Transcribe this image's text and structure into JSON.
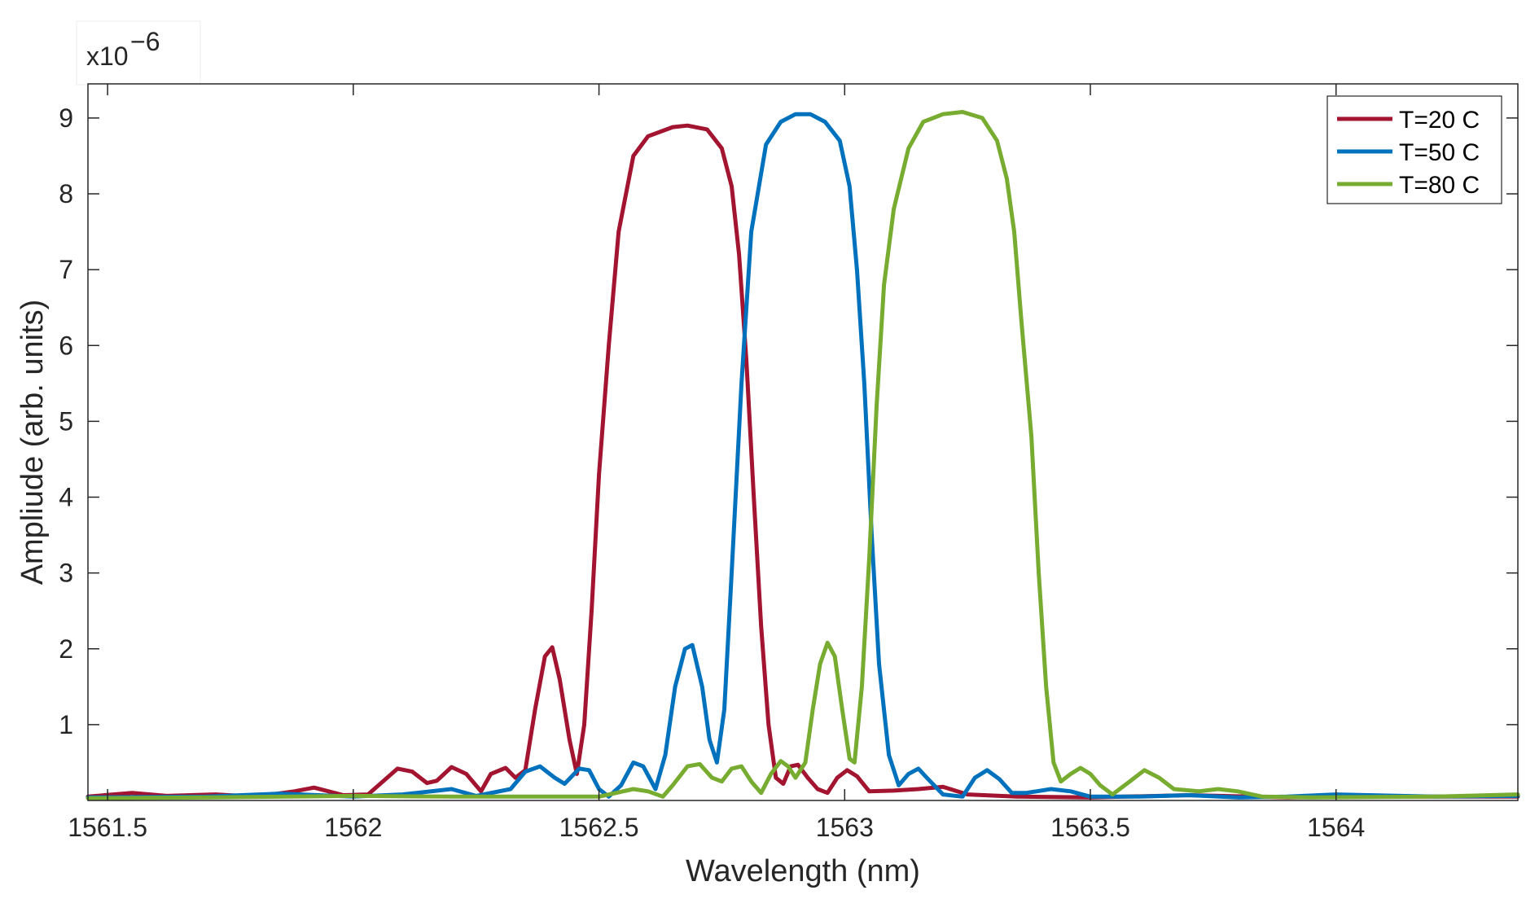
{
  "chart_data": {
    "type": "line",
    "title": "",
    "xlabel": "Wavelength (nm)",
    "ylabel": "Ampliude (arb. units)",
    "y_exponent": "x10",
    "y_exponent_power": "−6",
    "xlim": [
      1561.46,
      1564.37
    ],
    "ylim": [
      0,
      9.45
    ],
    "xticks": [
      1561.5,
      1562,
      1562.5,
      1563,
      1563.5,
      1564
    ],
    "xtick_labels": [
      "1561.5",
      "1562",
      "1562.5",
      "1563",
      "1563.5",
      "1564"
    ],
    "yticks": [
      1,
      2,
      3,
      4,
      5,
      6,
      7,
      8,
      9
    ],
    "ytick_labels": [
      "1",
      "2",
      "3",
      "4",
      "5",
      "6",
      "7",
      "8",
      "9"
    ],
    "grid": false,
    "legend_position": "top-right",
    "series": [
      {
        "name": "T=20 C",
        "color": "#a2142f",
        "points": [
          [
            1561.46,
            0.05
          ],
          [
            1561.55,
            0.1
          ],
          [
            1561.62,
            0.06
          ],
          [
            1561.72,
            0.08
          ],
          [
            1561.8,
            0.05
          ],
          [
            1561.88,
            0.12
          ],
          [
            1561.92,
            0.17
          ],
          [
            1561.98,
            0.07
          ],
          [
            1562.03,
            0.08
          ],
          [
            1562.06,
            0.25
          ],
          [
            1562.09,
            0.42
          ],
          [
            1562.12,
            0.38
          ],
          [
            1562.15,
            0.23
          ],
          [
            1562.17,
            0.26
          ],
          [
            1562.2,
            0.44
          ],
          [
            1562.23,
            0.35
          ],
          [
            1562.26,
            0.12
          ],
          [
            1562.28,
            0.35
          ],
          [
            1562.31,
            0.43
          ],
          [
            1562.33,
            0.3
          ],
          [
            1562.35,
            0.4
          ],
          [
            1562.37,
            1.2
          ],
          [
            1562.39,
            1.9
          ],
          [
            1562.405,
            2.02
          ],
          [
            1562.42,
            1.6
          ],
          [
            1562.44,
            0.8
          ],
          [
            1562.455,
            0.35
          ],
          [
            1562.47,
            1.0
          ],
          [
            1562.485,
            2.5
          ],
          [
            1562.5,
            4.3
          ],
          [
            1562.52,
            6.0
          ],
          [
            1562.54,
            7.5
          ],
          [
            1562.57,
            8.5
          ],
          [
            1562.6,
            8.76
          ],
          [
            1562.65,
            8.88
          ],
          [
            1562.68,
            8.9
          ],
          [
            1562.72,
            8.85
          ],
          [
            1562.75,
            8.6
          ],
          [
            1562.77,
            8.1
          ],
          [
            1562.785,
            7.2
          ],
          [
            1562.8,
            5.8
          ],
          [
            1562.815,
            4.0
          ],
          [
            1562.83,
            2.3
          ],
          [
            1562.845,
            1.0
          ],
          [
            1562.86,
            0.3
          ],
          [
            1562.875,
            0.22
          ],
          [
            1562.89,
            0.45
          ],
          [
            1562.905,
            0.47
          ],
          [
            1562.925,
            0.3
          ],
          [
            1562.945,
            0.15
          ],
          [
            1562.965,
            0.1
          ],
          [
            1562.985,
            0.3
          ],
          [
            1563.005,
            0.4
          ],
          [
            1563.025,
            0.32
          ],
          [
            1563.05,
            0.12
          ],
          [
            1563.1,
            0.13
          ],
          [
            1563.15,
            0.15
          ],
          [
            1563.2,
            0.18
          ],
          [
            1563.25,
            0.08
          ],
          [
            1563.35,
            0.05
          ],
          [
            1563.5,
            0.04
          ],
          [
            1563.7,
            0.07
          ],
          [
            1563.9,
            0.04
          ],
          [
            1564.1,
            0.05
          ],
          [
            1564.37,
            0.05
          ]
        ]
      },
      {
        "name": "T=50 C",
        "color": "#0072bd",
        "points": [
          [
            1561.46,
            0.04
          ],
          [
            1561.7,
            0.05
          ],
          [
            1561.85,
            0.09
          ],
          [
            1562.0,
            0.05
          ],
          [
            1562.1,
            0.08
          ],
          [
            1562.2,
            0.15
          ],
          [
            1562.25,
            0.06
          ],
          [
            1562.32,
            0.15
          ],
          [
            1562.35,
            0.38
          ],
          [
            1562.38,
            0.45
          ],
          [
            1562.41,
            0.3
          ],
          [
            1562.43,
            0.22
          ],
          [
            1562.46,
            0.42
          ],
          [
            1562.48,
            0.4
          ],
          [
            1562.5,
            0.15
          ],
          [
            1562.52,
            0.05
          ],
          [
            1562.545,
            0.2
          ],
          [
            1562.57,
            0.5
          ],
          [
            1562.59,
            0.45
          ],
          [
            1562.615,
            0.15
          ],
          [
            1562.635,
            0.6
          ],
          [
            1562.655,
            1.5
          ],
          [
            1562.675,
            2.0
          ],
          [
            1562.69,
            2.05
          ],
          [
            1562.71,
            1.5
          ],
          [
            1562.725,
            0.8
          ],
          [
            1562.74,
            0.5
          ],
          [
            1562.755,
            1.2
          ],
          [
            1562.77,
            3.0
          ],
          [
            1562.79,
            5.5
          ],
          [
            1562.81,
            7.5
          ],
          [
            1562.84,
            8.65
          ],
          [
            1562.87,
            8.95
          ],
          [
            1562.9,
            9.05
          ],
          [
            1562.93,
            9.05
          ],
          [
            1562.96,
            8.95
          ],
          [
            1562.99,
            8.7
          ],
          [
            1563.01,
            8.1
          ],
          [
            1563.025,
            7.0
          ],
          [
            1563.04,
            5.5
          ],
          [
            1563.055,
            3.5
          ],
          [
            1563.07,
            1.8
          ],
          [
            1563.09,
            0.6
          ],
          [
            1563.11,
            0.2
          ],
          [
            1563.13,
            0.35
          ],
          [
            1563.15,
            0.42
          ],
          [
            1563.17,
            0.28
          ],
          [
            1563.2,
            0.08
          ],
          [
            1563.24,
            0.05
          ],
          [
            1563.265,
            0.3
          ],
          [
            1563.29,
            0.4
          ],
          [
            1563.315,
            0.28
          ],
          [
            1563.34,
            0.1
          ],
          [
            1563.37,
            0.1
          ],
          [
            1563.42,
            0.15
          ],
          [
            1563.46,
            0.12
          ],
          [
            1563.5,
            0.05
          ],
          [
            1563.6,
            0.05
          ],
          [
            1563.7,
            0.07
          ],
          [
            1563.8,
            0.04
          ],
          [
            1563.9,
            0.05
          ],
          [
            1564.0,
            0.08
          ],
          [
            1564.2,
            0.05
          ],
          [
            1564.37,
            0.06
          ]
        ]
      },
      {
        "name": "T=80 C",
        "color": "#77ac30",
        "points": [
          [
            1561.46,
            0.03
          ],
          [
            1561.7,
            0.04
          ],
          [
            1562.0,
            0.06
          ],
          [
            1562.2,
            0.05
          ],
          [
            1562.4,
            0.05
          ],
          [
            1562.5,
            0.05
          ],
          [
            1562.57,
            0.15
          ],
          [
            1562.6,
            0.12
          ],
          [
            1562.63,
            0.05
          ],
          [
            1562.65,
            0.2
          ],
          [
            1562.68,
            0.45
          ],
          [
            1562.705,
            0.48
          ],
          [
            1562.73,
            0.3
          ],
          [
            1562.75,
            0.25
          ],
          [
            1562.77,
            0.42
          ],
          [
            1562.79,
            0.45
          ],
          [
            1562.81,
            0.25
          ],
          [
            1562.83,
            0.1
          ],
          [
            1562.85,
            0.35
          ],
          [
            1562.87,
            0.52
          ],
          [
            1562.885,
            0.45
          ],
          [
            1562.9,
            0.3
          ],
          [
            1562.92,
            0.5
          ],
          [
            1562.935,
            1.2
          ],
          [
            1562.95,
            1.8
          ],
          [
            1562.965,
            2.08
          ],
          [
            1562.98,
            1.9
          ],
          [
            1562.995,
            1.2
          ],
          [
            1563.01,
            0.55
          ],
          [
            1563.02,
            0.5
          ],
          [
            1563.035,
            1.5
          ],
          [
            1563.05,
            3.2
          ],
          [
            1563.065,
            5.2
          ],
          [
            1563.08,
            6.8
          ],
          [
            1563.1,
            7.8
          ],
          [
            1563.13,
            8.6
          ],
          [
            1563.16,
            8.95
          ],
          [
            1563.2,
            9.05
          ],
          [
            1563.24,
            9.08
          ],
          [
            1563.28,
            9.0
          ],
          [
            1563.31,
            8.7
          ],
          [
            1563.33,
            8.2
          ],
          [
            1563.345,
            7.5
          ],
          [
            1563.36,
            6.3
          ],
          [
            1563.38,
            4.8
          ],
          [
            1563.395,
            3.0
          ],
          [
            1563.41,
            1.5
          ],
          [
            1563.425,
            0.5
          ],
          [
            1563.44,
            0.25
          ],
          [
            1563.46,
            0.35
          ],
          [
            1563.48,
            0.43
          ],
          [
            1563.5,
            0.35
          ],
          [
            1563.52,
            0.2
          ],
          [
            1563.545,
            0.08
          ],
          [
            1563.58,
            0.25
          ],
          [
            1563.61,
            0.4
          ],
          [
            1563.64,
            0.3
          ],
          [
            1563.67,
            0.15
          ],
          [
            1563.72,
            0.12
          ],
          [
            1563.76,
            0.15
          ],
          [
            1563.8,
            0.12
          ],
          [
            1563.85,
            0.05
          ],
          [
            1563.95,
            0.04
          ],
          [
            1564.2,
            0.05
          ],
          [
            1564.37,
            0.08
          ]
        ]
      }
    ]
  }
}
